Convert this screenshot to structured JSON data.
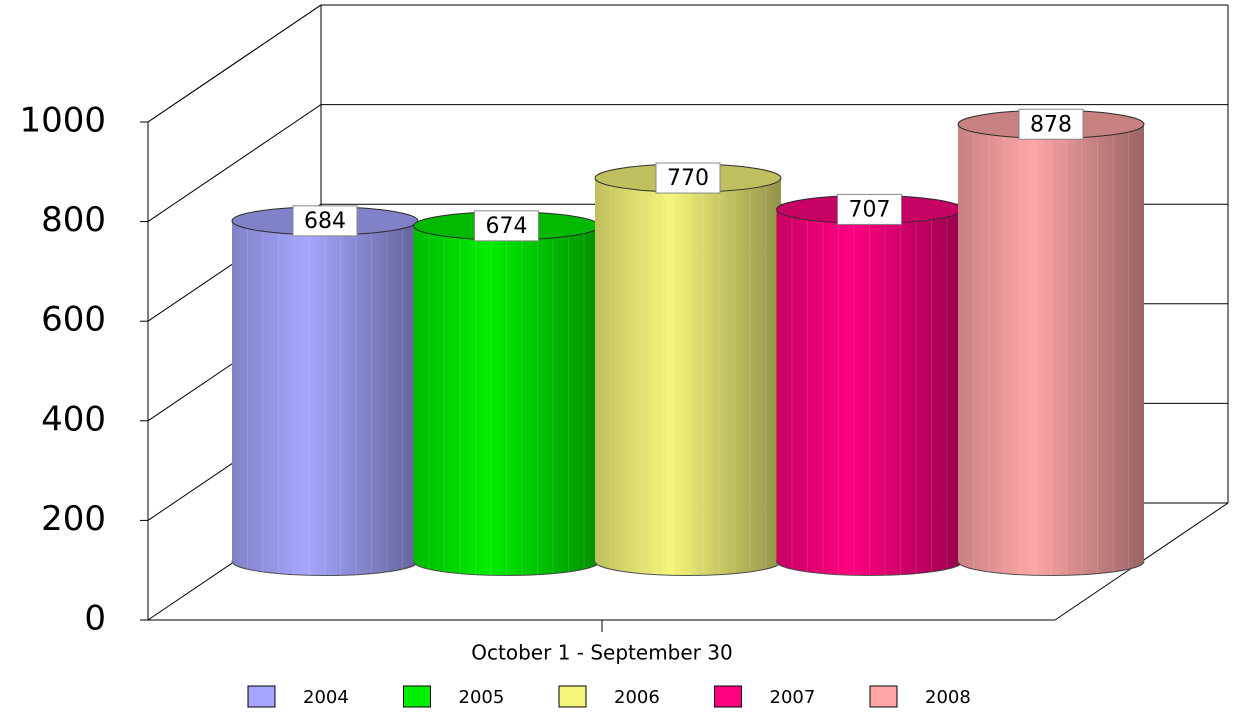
{
  "chart_data": {
    "type": "bar",
    "x_label": "October 1 - September 30",
    "categories": [
      "October 1 - September 30"
    ],
    "series": [
      {
        "name": "2004",
        "color": "#a6a6ff",
        "values": [
          684
        ]
      },
      {
        "name": "2005",
        "color": "#00ee00",
        "values": [
          674
        ]
      },
      {
        "name": "2006",
        "color": "#f5f57a",
        "values": [
          770
        ]
      },
      {
        "name": "2007",
        "color": "#ff0080",
        "values": [
          707
        ]
      },
      {
        "name": "2008",
        "color": "#ffa6a6",
        "values": [
          878
        ]
      }
    ],
    "ylim": [
      0,
      1000
    ],
    "yticks": [
      0,
      200,
      400,
      600,
      800,
      1000
    ],
    "grid": true,
    "legend": "bottom"
  }
}
